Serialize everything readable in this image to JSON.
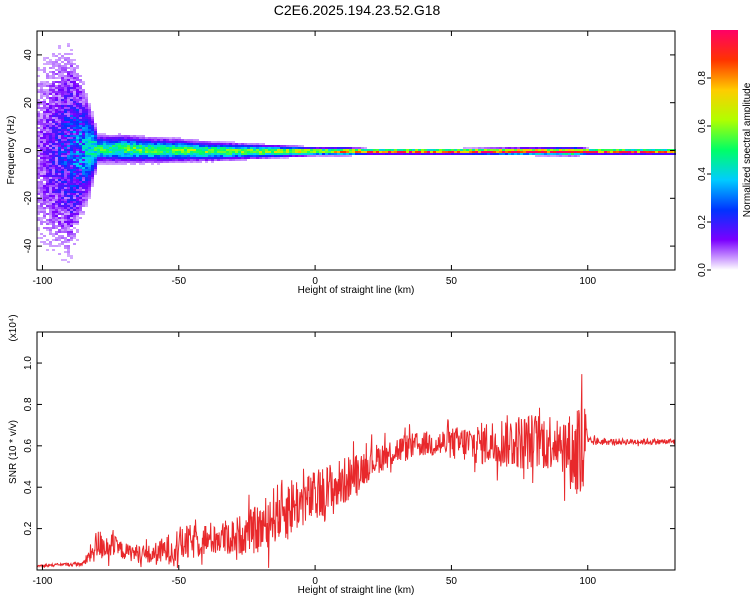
{
  "title": "C2E6.2025.194.23.52.G18",
  "chart_data": [
    {
      "type": "heatmap",
      "xlabel": "Height of straight line (km)",
      "ylabel": "Frequency (Hz)",
      "xlim": [
        -102,
        132
      ],
      "ylim": [
        -50,
        50
      ],
      "xticks": [
        -100,
        -50,
        0,
        50,
        100
      ],
      "xtick_labels": [
        "-100",
        "-50",
        "0",
        "50",
        "100"
      ],
      "yticks": [
        -40,
        -20,
        0,
        20,
        40
      ],
      "ytick_labels": [
        "-40",
        "-20",
        "0",
        "20",
        "40"
      ],
      "colorbar": {
        "label": "Normalized spectral amplitude",
        "range": [
          0,
          1
        ],
        "ticks": [
          0.0,
          0.2,
          0.4,
          0.6,
          0.8
        ],
        "tick_labels": [
          "0.0",
          "0.2",
          "0.4",
          "0.6",
          "0.8"
        ],
        "colors": [
          "#ffffff",
          "#7b00ff",
          "#0033ff",
          "#00ccff",
          "#00ff66",
          "#b0ff00",
          "#ffcc00",
          "#ff3300",
          "#ff0066"
        ]
      },
      "band_profile": {
        "x": [
          -102,
          -90,
          -80,
          -70,
          -60,
          -50,
          -40,
          -30,
          -20,
          -10,
          0,
          10,
          20,
          50,
          95,
          100,
          132
        ],
        "center_hz": [
          0,
          0,
          1,
          1,
          0.5,
          0.5,
          0,
          0,
          0,
          0,
          0,
          0,
          0,
          0,
          0,
          0,
          0
        ],
        "spread_hz": [
          45,
          40,
          5,
          5,
          4.5,
          4,
          3.5,
          3,
          2.5,
          2,
          1.5,
          1.5,
          1,
          1,
          1.5,
          1,
          1
        ],
        "peak": [
          0.1,
          0.3,
          0.5,
          0.55,
          0.55,
          0.6,
          0.6,
          0.6,
          0.65,
          0.7,
          0.7,
          0.8,
          0.95,
          1.0,
          1.0,
          1.0,
          0.9
        ]
      }
    },
    {
      "type": "line",
      "xlabel": "Height of straight line (km)",
      "ylabel": "SNR (10 * v/v)",
      "exponent_label": "(x10⁴)",
      "xlim": [
        -102,
        132
      ],
      "ylim": [
        0,
        1.15
      ],
      "xticks": [
        -100,
        -50,
        0,
        50,
        100
      ],
      "xtick_labels": [
        "-100",
        "-50",
        "0",
        "50",
        "100"
      ],
      "yticks": [
        0.2,
        0.4,
        0.6,
        0.8,
        1.0
      ],
      "ytick_labels": [
        "0.2",
        "0.4",
        "0.6",
        "0.8",
        "1.0"
      ],
      "series": [
        {
          "color": "#e8282b",
          "envelope": {
            "x": [
              -102,
              -85,
              -80,
              -75,
              -70,
              -60,
              -50,
              -40,
              -30,
              -20,
              -15,
              -10,
              -5,
              0,
              5,
              10,
              15,
              20,
              25,
              30,
              40,
              50,
              60,
              70,
              80,
              90,
              95,
              98,
              100,
              110,
              120,
              132
            ],
            "base": [
              0.02,
              0.03,
              0.12,
              0.12,
              0.09,
              0.07,
              0.12,
              0.15,
              0.16,
              0.2,
              0.27,
              0.3,
              0.33,
              0.35,
              0.38,
              0.42,
              0.47,
              0.52,
              0.55,
              0.58,
              0.61,
              0.61,
              0.61,
              0.62,
              0.62,
              0.63,
              0.55,
              0.6,
              0.62,
              0.62,
              0.62,
              0.62
            ],
            "noise": [
              0.005,
              0.01,
              0.08,
              0.06,
              0.04,
              0.05,
              0.09,
              0.08,
              0.09,
              0.12,
              0.14,
              0.16,
              0.12,
              0.13,
              0.14,
              0.12,
              0.1,
              0.08,
              0.07,
              0.07,
              0.06,
              0.08,
              0.1,
              0.13,
              0.14,
              0.14,
              0.2,
              0.45,
              0.02,
              0.015,
              0.015,
              0.015
            ]
          }
        }
      ]
    }
  ]
}
